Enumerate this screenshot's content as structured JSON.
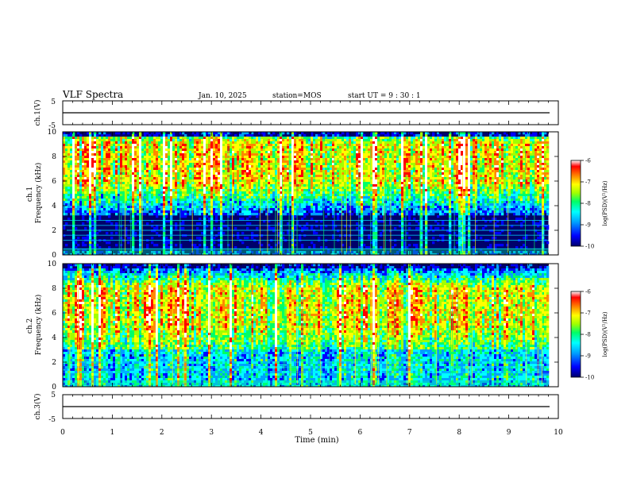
{
  "header": {
    "title": "VLF Spectra",
    "date": "Jan. 10, 2025",
    "station": "station=MOS",
    "start": "start UT =  9 : 30 : 1"
  },
  "chart_data": [
    {
      "type": "line",
      "panel": "ch1-waveform",
      "ylabel": "ch.1(V)",
      "ylim": [
        -5,
        5
      ],
      "yticks": [
        "5",
        "-5"
      ],
      "x": [
        0,
        10
      ],
      "values": [
        0,
        0
      ],
      "color": "#000000"
    },
    {
      "type": "heatmap",
      "panel": "ch1-spectrogram",
      "ylabel": "ch.1\nFrequency (kHz)",
      "ylim": [
        0,
        10
      ],
      "yticks": [
        "0",
        "2",
        "4",
        "6",
        "8",
        "10"
      ],
      "xlim": [
        0,
        10
      ],
      "band_peak_khz": [
        6,
        9
      ],
      "horizontal_lines_khz": [
        0.5,
        1.2,
        1.6,
        2.0,
        2.4,
        2.8
      ],
      "colorbar": {
        "label": "log(PSD)(V²/Hz)",
        "range": [
          -10,
          -6
        ],
        "ticks": [
          "-6",
          "-7",
          "-8",
          "-9",
          "-10"
        ]
      }
    },
    {
      "type": "heatmap",
      "panel": "ch2-spectrogram",
      "ylabel": "ch.2\nFrequency (kHz)",
      "ylim": [
        0,
        10
      ],
      "yticks": [
        "0",
        "2",
        "4",
        "6",
        "8",
        "10"
      ],
      "xlim": [
        0,
        10
      ],
      "band_peak_khz": [
        5,
        8
      ],
      "horizontal_lines_khz": [
        1.2,
        1.6,
        2.0
      ],
      "colorbar": {
        "label": "log(PSD)(V²/Hz)",
        "range": [
          -10,
          -6
        ],
        "ticks": [
          "-6",
          "-7",
          "-8",
          "-9",
          "-10"
        ]
      }
    },
    {
      "type": "line",
      "panel": "ch3-waveform",
      "ylabel": "ch.3(V)",
      "ylim": [
        -5,
        5
      ],
      "yticks": [
        "5",
        "-5"
      ],
      "x": [
        0,
        10
      ],
      "values": [
        0,
        0
      ],
      "color": "#000000"
    }
  ],
  "xaxis": {
    "label": "Time (min)",
    "range": [
      0,
      10
    ],
    "ticks": [
      "0",
      "1",
      "2",
      "3",
      "4",
      "5",
      "6",
      "7",
      "8",
      "9",
      "10"
    ],
    "data_end_min": 9.8
  },
  "colors": {
    "colormap": [
      "#00006a",
      "#0000ff",
      "#00a0ff",
      "#00ffff",
      "#00ff66",
      "#a0ff00",
      "#ffff00",
      "#ff8800",
      "#ff0000",
      "#ffffff"
    ]
  }
}
